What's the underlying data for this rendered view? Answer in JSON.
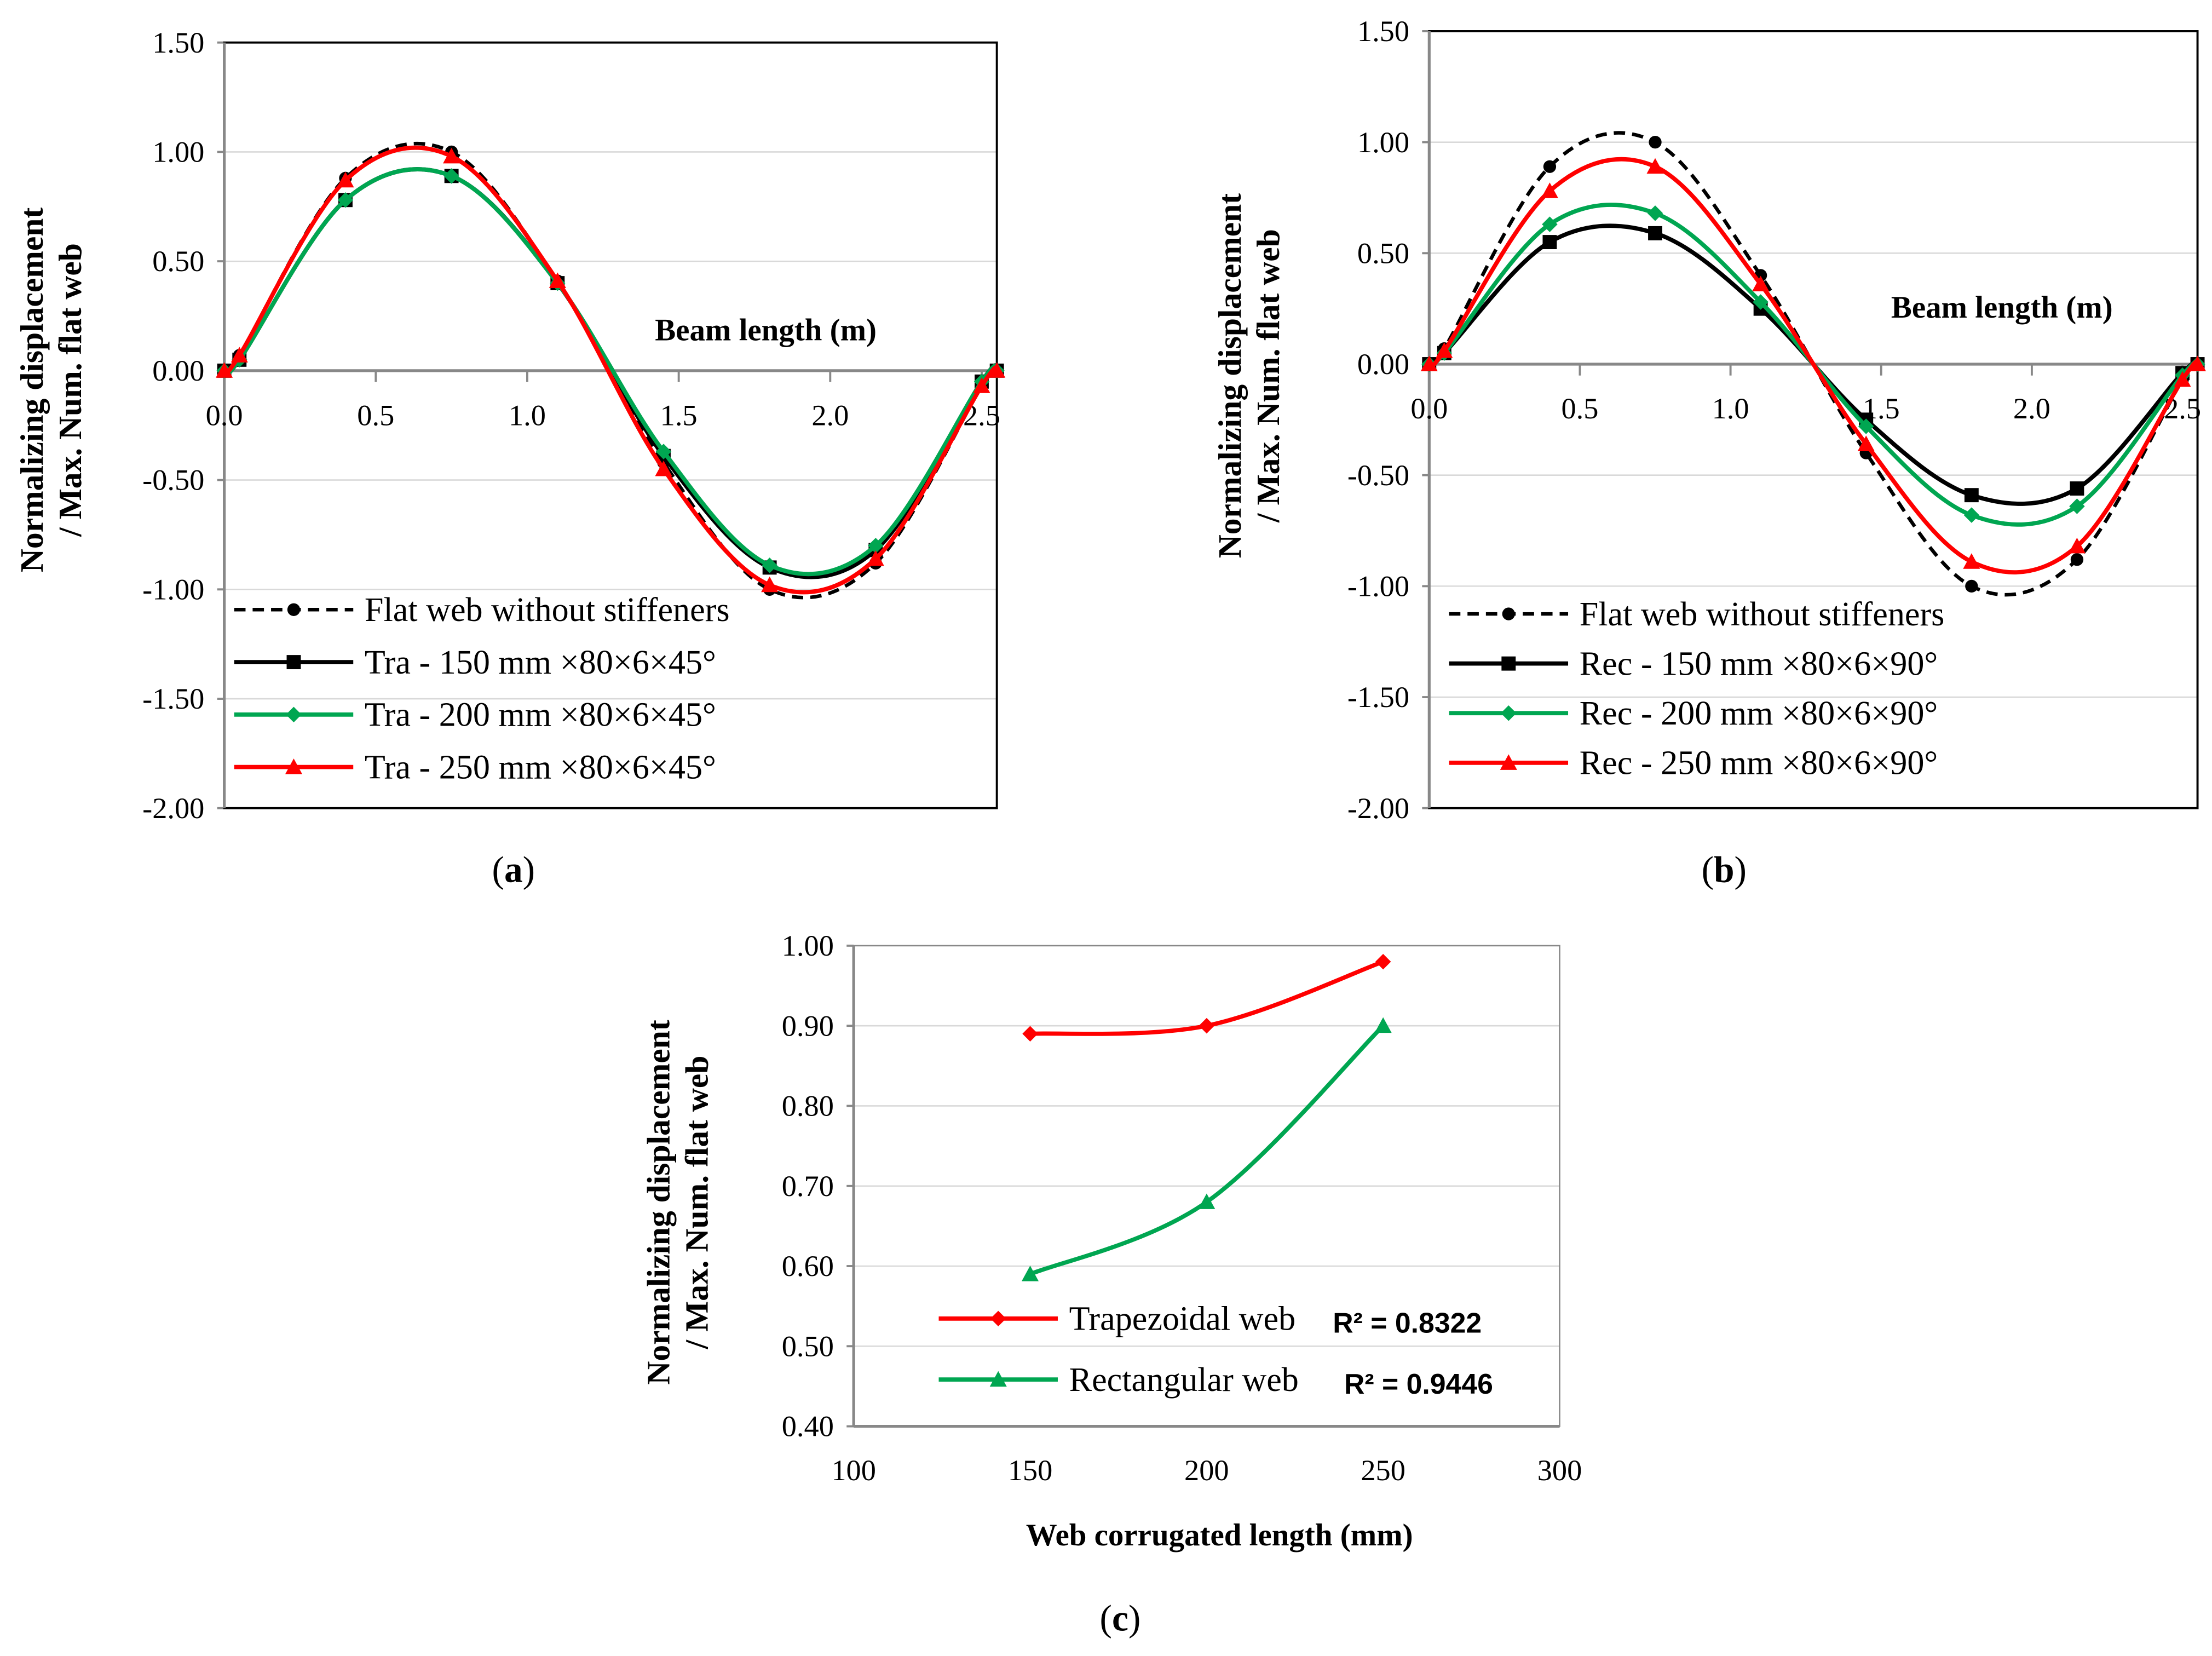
{
  "chart_data": [
    {
      "id": "a",
      "type": "line",
      "caption_letter": "a",
      "caption": "(a)",
      "xlabel": "Beam length (m)",
      "ylabel_line1": "Normalizing displacement",
      "ylabel_line2": "/ Max. Num. flat web",
      "xlim": [
        0,
        2.55
      ],
      "ylim": [
        -2.0,
        1.5
      ],
      "xticks": [
        "0.0",
        "0.5",
        "1.0",
        "1.5",
        "2.0",
        "2.5"
      ],
      "xtick_values": [
        0,
        0.5,
        1,
        1.5,
        2,
        2.5
      ],
      "yticks": [
        "1.50",
        "1.00",
        "0.50",
        "0.00",
        "-0.50",
        "-1.00",
        "-1.50",
        "-2.00"
      ],
      "ytick_values": [
        1.5,
        1,
        0.5,
        0,
        -0.5,
        -1,
        -1.5,
        -2
      ],
      "x": [
        0,
        0.05,
        0.4,
        0.75,
        1.1,
        1.45,
        1.8,
        2.15,
        2.5,
        2.55
      ],
      "series": [
        {
          "name": "Flat web without stiffeners",
          "color": "#000000",
          "dash": true,
          "marker": "dot",
          "values": [
            0,
            0.07,
            0.88,
            1.0,
            0.41,
            -0.42,
            -1.0,
            -0.88,
            -0.07,
            0
          ]
        },
        {
          "name": "Tra - 150 mm  ×80×6×45°",
          "color": "#000000",
          "dash": false,
          "marker": "square",
          "values": [
            0,
            0.05,
            0.78,
            0.89,
            0.4,
            -0.39,
            -0.9,
            -0.82,
            -0.05,
            0
          ]
        },
        {
          "name": "Tra - 200 mm  ×80×6×45°",
          "color": "#00A651",
          "dash": false,
          "marker": "diamond",
          "values": [
            0,
            0.05,
            0.78,
            0.89,
            0.4,
            -0.37,
            -0.89,
            -0.8,
            -0.05,
            0
          ]
        },
        {
          "name": "Tra - 250 mm  ×80×6×45°",
          "color": "#FF0000",
          "dash": false,
          "marker": "triangle",
          "values": [
            0,
            0.07,
            0.87,
            0.98,
            0.41,
            -0.45,
            -0.98,
            -0.86,
            -0.07,
            0
          ]
        }
      ]
    },
    {
      "id": "b",
      "type": "line",
      "caption_letter": "b",
      "caption": "(b)",
      "xlabel": "Beam length (m)",
      "ylabel_line1": "Normalizing displacement",
      "ylabel_line2": "/ Max. Num. flat web",
      "xlim": [
        0,
        2.55
      ],
      "ylim": [
        -2.0,
        1.5
      ],
      "xticks": [
        "0.0",
        "0.5",
        "1.0",
        "1.5",
        "2.0",
        "2.5"
      ],
      "xtick_values": [
        0,
        0.5,
        1,
        1.5,
        2,
        2.5
      ],
      "yticks": [
        "1.50",
        "1.00",
        "0.50",
        "0.00",
        "-0.50",
        "-1.00",
        "-1.50",
        "-2.00"
      ],
      "ytick_values": [
        1.5,
        1,
        0.5,
        0,
        -0.5,
        -1,
        -1.5,
        -2
      ],
      "x": [
        0,
        0.05,
        0.4,
        0.75,
        1.1,
        1.45,
        1.8,
        2.15,
        2.5,
        2.55
      ],
      "series": [
        {
          "name": "Flat web without stiffeners",
          "color": "#000000",
          "dash": true,
          "marker": "dot",
          "values": [
            0,
            0.07,
            0.89,
            1.0,
            0.4,
            -0.4,
            -1.0,
            -0.88,
            -0.07,
            0
          ]
        },
        {
          "name": "Rec - 150 mm  ×80×6×90°",
          "color": "#000000",
          "dash": false,
          "marker": "square",
          "values": [
            0,
            0.05,
            0.55,
            0.59,
            0.25,
            -0.25,
            -0.59,
            -0.56,
            -0.04,
            0
          ]
        },
        {
          "name": "Rec - 200 mm  ×80×6×90°",
          "color": "#00A651",
          "dash": false,
          "marker": "diamond",
          "values": [
            0,
            0.05,
            0.63,
            0.68,
            0.28,
            -0.28,
            -0.68,
            -0.64,
            -0.05,
            0
          ]
        },
        {
          "name": "Rec - 250 mm  ×80×6×90°",
          "color": "#FF0000",
          "dash": false,
          "marker": "triangle",
          "values": [
            0,
            0.06,
            0.78,
            0.89,
            0.36,
            -0.36,
            -0.89,
            -0.82,
            -0.07,
            0
          ]
        }
      ]
    },
    {
      "id": "c",
      "type": "line",
      "caption_letter": "c",
      "caption": "(c)",
      "xlabel": "Web corrugated length (mm)",
      "ylabel_line1": "Normalizing displacement",
      "ylabel_line2": "/ Max. Num. flat web",
      "xlim": [
        100,
        300
      ],
      "ylim": [
        0.4,
        1.0
      ],
      "xticks": [
        "100",
        "150",
        "200",
        "250",
        "300"
      ],
      "xtick_values": [
        100,
        150,
        200,
        250,
        300
      ],
      "yticks": [
        "1.00",
        "0.90",
        "0.80",
        "0.70",
        "0.60",
        "0.50",
        "0.40"
      ],
      "ytick_values": [
        1,
        0.9,
        0.8,
        0.7,
        0.6,
        0.5,
        0.4
      ],
      "x": [
        150,
        200,
        250
      ],
      "series": [
        {
          "name": "Trapezoidal web",
          "r2": "R² = 0.8322",
          "color": "#FF0000",
          "dash": false,
          "marker": "diamond",
          "values": [
            0.89,
            0.9,
            0.98
          ]
        },
        {
          "name": "Rectangular web",
          "r2": "R² = 0.9446",
          "color": "#00A651",
          "dash": false,
          "marker": "triangle",
          "values": [
            0.59,
            0.68,
            0.9
          ]
        }
      ]
    }
  ]
}
